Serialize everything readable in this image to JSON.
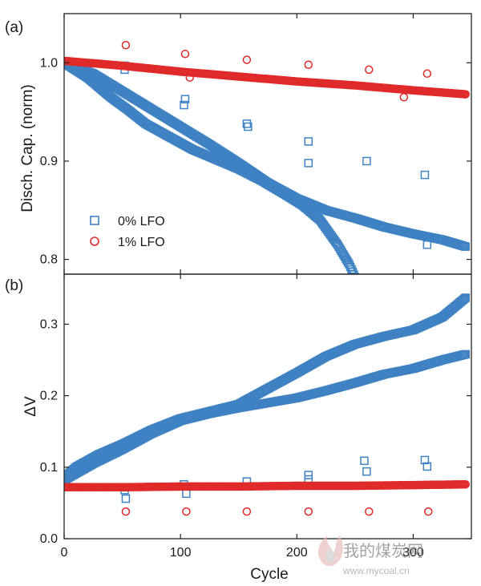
{
  "watermark": {
    "text": "我的煤炭网",
    "url": "www.mycoal.cn"
  },
  "colors": {
    "lfo0": "#3f82c3",
    "lfo1": "#e02a2a",
    "axis": "#222222"
  },
  "chart_data": [
    {
      "panel_label": "(a)",
      "type": "scatter",
      "ylabel": "Disch. Cap. (norm)",
      "xlim": [
        0,
        350
      ],
      "ylim": [
        0.785,
        1.05
      ],
      "yticks": [
        0.8,
        0.9,
        1.0
      ],
      "ytick_labels": [
        "0.8",
        "0.9",
        "1.0"
      ],
      "xticks": [
        0,
        100,
        200,
        300
      ],
      "legend": {
        "placement": "lower-left",
        "entries": [
          "0% LFO",
          "1% LFO"
        ]
      },
      "series": [
        {
          "name": "0% LFO",
          "marker": "square",
          "color": "#3f82c3",
          "curves": [
            {
              "x": [
                0,
                20,
                40,
                55,
                70,
                90,
                110,
                130,
                150,
                170,
                190,
                205,
                220,
                235,
                245,
                250
              ],
              "y": [
                1.0,
                0.985,
                0.965,
                0.952,
                0.938,
                0.925,
                0.912,
                0.902,
                0.892,
                0.88,
                0.866,
                0.855,
                0.84,
                0.815,
                0.795,
                0.782
              ]
            },
            {
              "x": [
                0,
                25,
                50,
                75,
                100,
                125,
                150,
                175,
                200,
                225,
                250,
                275,
                300,
                325,
                345
              ],
              "y": [
                1.0,
                0.989,
                0.971,
                0.953,
                0.935,
                0.917,
                0.898,
                0.878,
                0.862,
                0.85,
                0.842,
                0.833,
                0.826,
                0.82,
                0.813
              ]
            }
          ],
          "outliers": {
            "x": [
              52,
              52,
              103,
              104,
              157,
              158,
              210,
              210,
              260,
              310,
              312
            ],
            "y": [
              0.993,
              0.997,
              0.957,
              0.963,
              0.938,
              0.935,
              0.92,
              0.898,
              0.9,
              0.886,
              0.815
            ]
          }
        },
        {
          "name": "1% LFO",
          "marker": "circle",
          "color": "#e02a2a",
          "curves": [
            {
              "x": [
                0,
                50,
                100,
                150,
                200,
                250,
                300,
                345
              ],
              "y": [
                1.002,
                0.997,
                0.991,
                0.986,
                0.981,
                0.977,
                0.972,
                0.968
              ]
            }
          ],
          "outliers": {
            "x": [
              53,
              104,
              108,
              157,
              210,
              262,
              292,
              312
            ],
            "y": [
              1.018,
              1.009,
              0.985,
              1.003,
              0.998,
              0.993,
              0.965,
              0.989
            ]
          }
        }
      ]
    },
    {
      "panel_label": "(b)",
      "type": "scatter",
      "xlabel": "Cycle",
      "ylabel": "ΔV",
      "xlim": [
        0,
        350
      ],
      "ylim": [
        0,
        0.37
      ],
      "yticks": [
        0.0,
        0.1,
        0.2,
        0.3
      ],
      "ytick_labels": [
        "0.0",
        "0.1",
        "0.2",
        "0.3"
      ],
      "xticks": [
        0,
        100,
        200,
        300
      ],
      "xtick_labels": [
        "0",
        "100",
        "200",
        "300"
      ],
      "series": [
        {
          "name": "0% LFO",
          "marker": "square",
          "color": "#3f82c3",
          "curves": [
            {
              "x": [
                0,
                10,
                30,
                50,
                75,
                100,
                125,
                150,
                175,
                200,
                225,
                250,
                275,
                300,
                325,
                345
              ],
              "y": [
                0.085,
                0.1,
                0.118,
                0.132,
                0.152,
                0.168,
                0.178,
                0.188,
                0.21,
                0.232,
                0.255,
                0.272,
                0.283,
                0.292,
                0.31,
                0.337
              ]
            },
            {
              "x": [
                0,
                25,
                50,
                75,
                100,
                125,
                150,
                175,
                200,
                225,
                250,
                275,
                300,
                325,
                345
              ],
              "y": [
                0.082,
                0.105,
                0.125,
                0.147,
                0.165,
                0.175,
                0.183,
                0.19,
                0.197,
                0.207,
                0.218,
                0.23,
                0.238,
                0.25,
                0.258
              ]
            }
          ],
          "outliers": {
            "x": [
              52,
              53,
              103,
              105,
              157,
              158,
              210,
              210,
              258,
              260,
              310,
              312
            ],
            "y": [
              0.068,
              0.056,
              0.076,
              0.063,
              0.08,
              0.073,
              0.089,
              0.083,
              0.109,
              0.094,
              0.11,
              0.101
            ]
          }
        },
        {
          "name": "1% LFO",
          "marker": "circle",
          "color": "#e02a2a",
          "curves": [
            {
              "x": [
                0,
                50,
                100,
                150,
                200,
                250,
                300,
                345
              ],
              "y": [
                0.072,
                0.072,
                0.073,
                0.073,
                0.074,
                0.074,
                0.075,
                0.076
              ]
            }
          ],
          "outliers": {
            "x": [
              53,
              105,
              157,
              210,
              262,
              313
            ],
            "y": [
              0.038,
              0.038,
              0.038,
              0.038,
              0.038,
              0.038
            ]
          }
        }
      ]
    }
  ]
}
